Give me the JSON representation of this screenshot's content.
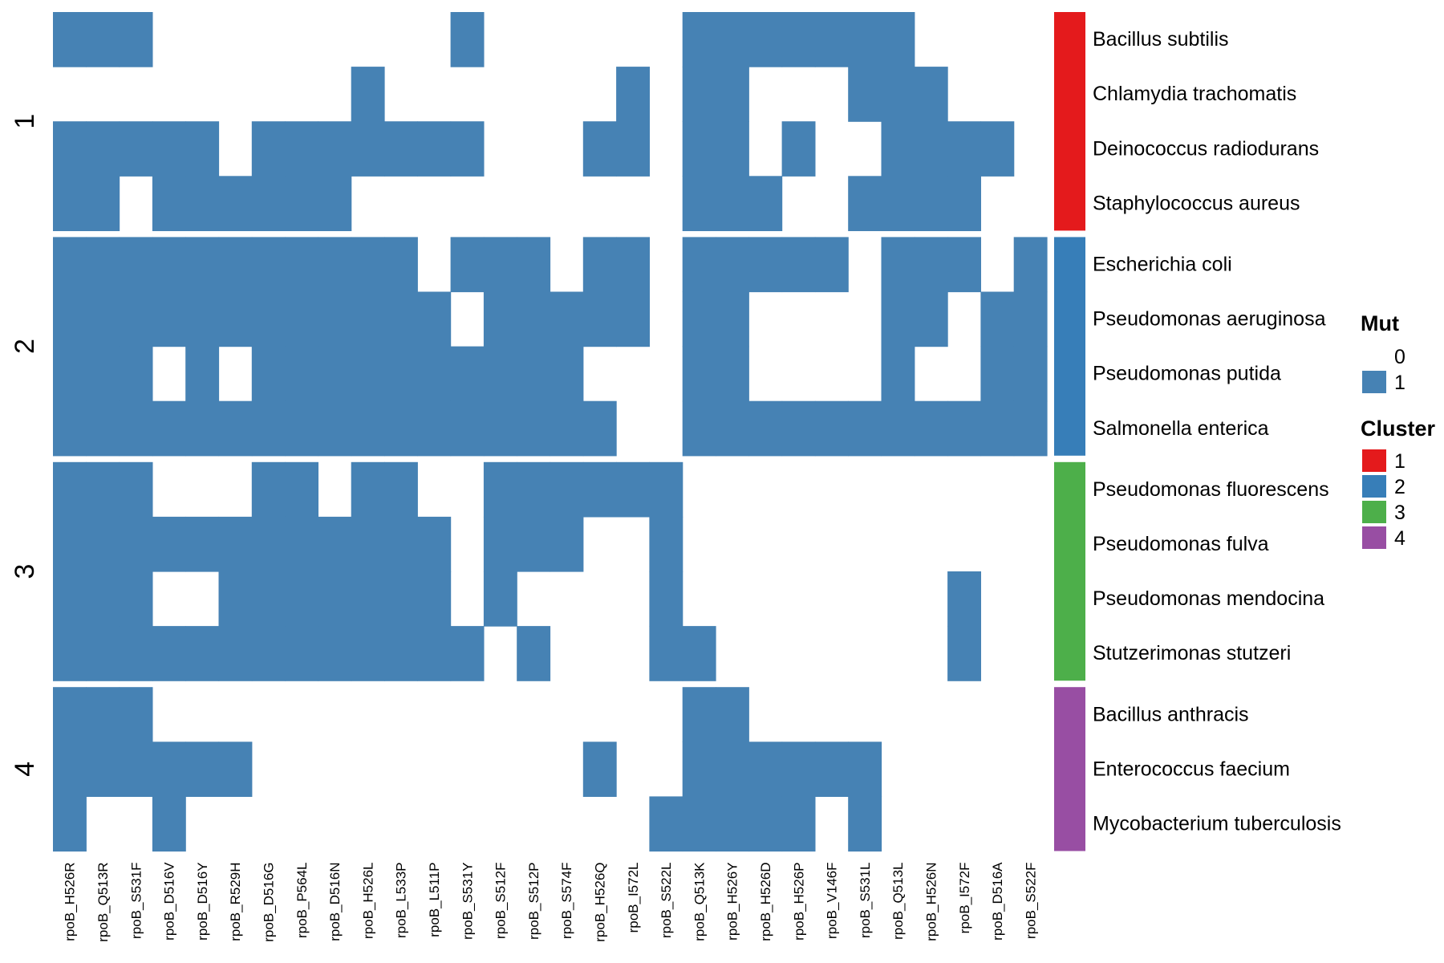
{
  "chart_data": {
    "type": "heatmap",
    "columns": [
      "rpoB_H526R",
      "rpoB_Q513R",
      "rpoB_S531F",
      "rpoB_D516V",
      "rpoB_D516Y",
      "rpoB_R529H",
      "rpoB_D516G",
      "rpoB_P564L",
      "rpoB_D516N",
      "rpoB_H526L",
      "rpoB_L533P",
      "rpoB_L511P",
      "rpoB_S531Y",
      "rpoB_S512F",
      "rpoB_S512P",
      "rpoB_S574F",
      "rpoB_H526Q",
      "rpoB_I572L",
      "rpoB_S522L",
      "rpoB_Q513K",
      "rpoB_H526Y",
      "rpoB_H526D",
      "rpoB_H526P",
      "rpoB_V146F",
      "rpoB_S531L",
      "rpoB_Q513L",
      "rpoB_H526N",
      "rpoB_I572F",
      "rpoB_D516A",
      "rpoB_S522F"
    ],
    "clusters": [
      {
        "label": "1",
        "color": "#E41A1C",
        "rows": [
          {
            "name": "Bacillus subtilis",
            "values": [
              1,
              1,
              1,
              0,
              0,
              0,
              0,
              0,
              0,
              0,
              0,
              0,
              1,
              0,
              0,
              0,
              0,
              0,
              0,
              1,
              1,
              1,
              1,
              1,
              1,
              1,
              0,
              0,
              0,
              0
            ]
          },
          {
            "name": "Chlamydia trachomatis",
            "values": [
              0,
              0,
              0,
              0,
              0,
              0,
              0,
              0,
              0,
              1,
              0,
              0,
              0,
              0,
              0,
              0,
              0,
              1,
              0,
              1,
              1,
              0,
              0,
              0,
              1,
              1,
              1,
              0,
              0,
              0
            ]
          },
          {
            "name": "Deinococcus radiodurans",
            "values": [
              1,
              1,
              1,
              1,
              1,
              0,
              1,
              1,
              1,
              1,
              1,
              1,
              1,
              0,
              0,
              0,
              1,
              1,
              0,
              1,
              1,
              0,
              1,
              0,
              0,
              1,
              1,
              1,
              1,
              0
            ]
          },
          {
            "name": "Staphylococcus aureus",
            "values": [
              1,
              1,
              0,
              1,
              1,
              1,
              1,
              1,
              1,
              0,
              0,
              0,
              0,
              0,
              0,
              0,
              0,
              0,
              0,
              1,
              1,
              1,
              0,
              0,
              1,
              1,
              1,
              1,
              0,
              0
            ]
          }
        ]
      },
      {
        "label": "2",
        "color": "#377EB8",
        "rows": [
          {
            "name": "Escherichia coli",
            "values": [
              1,
              1,
              1,
              1,
              1,
              1,
              1,
              1,
              1,
              1,
              1,
              0,
              1,
              1,
              1,
              0,
              1,
              1,
              0,
              1,
              1,
              1,
              1,
              1,
              0,
              1,
              1,
              1,
              0,
              1
            ]
          },
          {
            "name": "Pseudomonas aeruginosa",
            "values": [
              1,
              1,
              1,
              1,
              1,
              1,
              1,
              1,
              1,
              1,
              1,
              1,
              0,
              1,
              1,
              1,
              1,
              1,
              0,
              1,
              1,
              0,
              0,
              0,
              0,
              1,
              1,
              0,
              1,
              1
            ]
          },
          {
            "name": "Pseudomonas putida",
            "values": [
              1,
              1,
              1,
              0,
              1,
              0,
              1,
              1,
              1,
              1,
              1,
              1,
              1,
              1,
              1,
              1,
              0,
              0,
              0,
              1,
              1,
              0,
              0,
              0,
              0,
              1,
              0,
              0,
              1,
              1
            ]
          },
          {
            "name": "Salmonella enterica",
            "values": [
              1,
              1,
              1,
              1,
              1,
              1,
              1,
              1,
              1,
              1,
              1,
              1,
              1,
              1,
              1,
              1,
              1,
              0,
              0,
              1,
              1,
              1,
              1,
              1,
              1,
              1,
              1,
              1,
              1,
              1
            ]
          }
        ]
      },
      {
        "label": "3",
        "color": "#4DAF4A",
        "rows": [
          {
            "name": "Pseudomonas fluorescens",
            "values": [
              1,
              1,
              1,
              0,
              0,
              0,
              1,
              1,
              0,
              1,
              1,
              0,
              0,
              1,
              1,
              1,
              1,
              1,
              1,
              0,
              0,
              0,
              0,
              0,
              0,
              0,
              0,
              0,
              0,
              0
            ]
          },
          {
            "name": "Pseudomonas fulva",
            "values": [
              1,
              1,
              1,
              1,
              1,
              1,
              1,
              1,
              1,
              1,
              1,
              1,
              0,
              1,
              1,
              1,
              0,
              0,
              1,
              0,
              0,
              0,
              0,
              0,
              0,
              0,
              0,
              0,
              0,
              0
            ]
          },
          {
            "name": "Pseudomonas mendocina",
            "values": [
              1,
              1,
              1,
              0,
              0,
              1,
              1,
              1,
              1,
              1,
              1,
              1,
              0,
              1,
              0,
              0,
              0,
              0,
              1,
              0,
              0,
              0,
              0,
              0,
              0,
              0,
              0,
              1,
              0,
              0
            ]
          },
          {
            "name": "Stutzerimonas stutzeri",
            "values": [
              1,
              1,
              1,
              1,
              1,
              1,
              1,
              1,
              1,
              1,
              1,
              1,
              1,
              0,
              1,
              0,
              0,
              0,
              1,
              1,
              0,
              0,
              0,
              0,
              0,
              0,
              0,
              1,
              0,
              0
            ]
          }
        ]
      },
      {
        "label": "4",
        "color": "#984EA3",
        "rows": [
          {
            "name": "Bacillus anthracis",
            "values": [
              1,
              1,
              1,
              0,
              0,
              0,
              0,
              0,
              0,
              0,
              0,
              0,
              0,
              0,
              0,
              0,
              0,
              0,
              0,
              1,
              1,
              0,
              0,
              0,
              0,
              0,
              0,
              0,
              0,
              0
            ]
          },
          {
            "name": "Enterococcus faecium",
            "values": [
              1,
              1,
              1,
              1,
              1,
              1,
              0,
              0,
              0,
              0,
              0,
              0,
              0,
              0,
              0,
              0,
              1,
              0,
              0,
              1,
              1,
              1,
              1,
              1,
              1,
              0,
              0,
              0,
              0,
              0
            ]
          },
          {
            "name": "Mycobacterium tuberculosis",
            "values": [
              1,
              0,
              0,
              1,
              0,
              0,
              0,
              0,
              0,
              0,
              0,
              0,
              0,
              0,
              0,
              0,
              0,
              0,
              1,
              1,
              1,
              1,
              1,
              0,
              1,
              0,
              0,
              0,
              0,
              0
            ]
          }
        ]
      }
    ],
    "colors": {
      "mut_1": "#4682B4",
      "mut_0": "#FFFFFF"
    },
    "legend": {
      "position": "right",
      "mut": {
        "title": "Mut",
        "entries": [
          {
            "label": "0",
            "color": "#FFFFFF"
          },
          {
            "label": "1",
            "color": "#4682B4"
          }
        ]
      },
      "cluster": {
        "title": "Cluster",
        "entries": [
          {
            "label": "1",
            "color": "#E41A1C"
          },
          {
            "label": "2",
            "color": "#377EB8"
          },
          {
            "label": "3",
            "color": "#4DAF4A"
          },
          {
            "label": "4",
            "color": "#984EA3"
          }
        ]
      }
    }
  }
}
